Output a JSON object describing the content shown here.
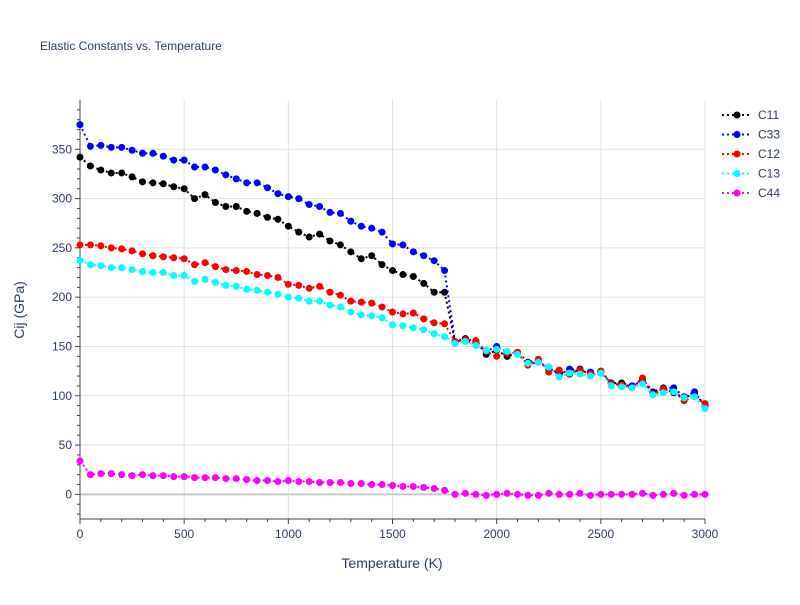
{
  "chart_data": {
    "type": "line",
    "title": "Elastic Constants vs. Temperature",
    "xlabel": "Temperature (K)",
    "ylabel": "Cij (GPa)",
    "xlim": [
      0,
      3000
    ],
    "ylim": [
      -25,
      400
    ],
    "x_ticks": [
      0,
      500,
      1000,
      1500,
      2000,
      2500,
      3000
    ],
    "x_tick_labels": [
      "0",
      "500",
      "1000",
      "1500",
      "2000",
      "2500",
      "3000"
    ],
    "y_ticks": [
      0,
      50,
      100,
      150,
      200,
      250,
      300,
      350
    ],
    "y_tick_labels": [
      "0",
      "50",
      "100",
      "150",
      "200",
      "250",
      "300",
      "350"
    ],
    "grid": true,
    "legend_position": "top-right",
    "line_style": "dotted",
    "marker": "circle",
    "x": [
      0,
      50,
      100,
      150,
      200,
      250,
      300,
      350,
      400,
      450,
      500,
      550,
      600,
      650,
      700,
      750,
      800,
      850,
      900,
      950,
      1000,
      1050,
      1100,
      1150,
      1200,
      1250,
      1300,
      1350,
      1400,
      1450,
      1500,
      1550,
      1600,
      1650,
      1700,
      1750,
      1800,
      1850,
      1900,
      1950,
      2000,
      2050,
      2100,
      2150,
      2200,
      2250,
      2300,
      2350,
      2400,
      2450,
      2500,
      2550,
      2600,
      2650,
      2700,
      2750,
      2800,
      2850,
      2900,
      2950,
      3000
    ],
    "series": [
      {
        "name": "C11",
        "color": "#000000",
        "values": [
          342,
          333,
          329,
          326,
          326,
          322,
          317,
          316,
          315,
          312,
          310,
          300,
          304,
          296,
          292,
          292,
          287,
          285,
          281,
          279,
          272,
          266,
          261,
          264,
          257,
          253,
          246,
          239,
          242,
          233,
          227,
          223,
          221,
          214,
          205,
          205,
          155,
          158,
          155,
          142,
          146,
          140,
          144,
          134,
          136,
          126,
          124,
          122,
          127,
          121,
          123,
          113,
          113,
          110,
          117,
          104,
          108,
          103,
          98,
          102,
          91
        ]
      },
      {
        "name": "C33",
        "color": "#0000ff",
        "values": [
          375,
          353,
          354,
          352,
          352,
          349,
          346,
          346,
          343,
          339,
          339,
          332,
          332,
          329,
          324,
          320,
          316,
          316,
          311,
          305,
          302,
          300,
          294,
          292,
          286,
          285,
          277,
          272,
          270,
          266,
          254,
          253,
          246,
          242,
          237,
          227,
          155,
          156,
          153,
          145,
          150,
          144,
          143,
          132,
          134,
          129,
          121,
          127,
          126,
          124,
          125,
          113,
          111,
          110,
          115,
          103,
          107,
          108,
          99,
          104,
          89
        ]
      },
      {
        "name": "C12",
        "color": "#ff0000",
        "values": [
          253,
          253,
          252,
          250,
          249,
          247,
          244,
          242,
          241,
          240,
          239,
          233,
          235,
          231,
          228,
          227,
          226,
          223,
          222,
          220,
          213,
          212,
          209,
          211,
          205,
          202,
          196,
          195,
          194,
          190,
          185,
          183,
          184,
          178,
          174,
          173,
          155,
          157,
          156,
          145,
          140,
          143,
          144,
          131,
          137,
          124,
          126,
          123,
          126,
          122,
          125,
          112,
          111,
          108,
          118,
          101,
          107,
          104,
          95,
          99,
          92
        ]
      },
      {
        "name": "C13",
        "color": "#00ffff",
        "values": [
          237,
          233,
          232,
          230,
          230,
          228,
          226,
          225,
          225,
          222,
          222,
          216,
          218,
          215,
          212,
          211,
          208,
          207,
          205,
          203,
          200,
          199,
          196,
          196,
          192,
          190,
          185,
          182,
          181,
          179,
          172,
          171,
          169,
          167,
          163,
          160,
          153,
          155,
          151,
          146,
          147,
          145,
          142,
          133,
          134,
          129,
          119,
          123,
          122,
          120,
          123,
          110,
          109,
          108,
          112,
          101,
          103,
          104,
          98,
          99,
          87
        ]
      },
      {
        "name": "C44",
        "color": "#ff00ff",
        "values": [
          34,
          20,
          21,
          21,
          20,
          19,
          20,
          19,
          19,
          18,
          18,
          17,
          17,
          17,
          16,
          16,
          15,
          14,
          14,
          13,
          14,
          13,
          13,
          12,
          12,
          12,
          11,
          11,
          10,
          10,
          9,
          8,
          8,
          7,
          6,
          4,
          0,
          1,
          0,
          -1,
          0,
          1,
          0,
          -1,
          -1,
          1,
          0,
          0,
          1,
          -1,
          0,
          0,
          0,
          0,
          1,
          -1,
          0,
          1,
          -1,
          0,
          0
        ]
      }
    ]
  }
}
